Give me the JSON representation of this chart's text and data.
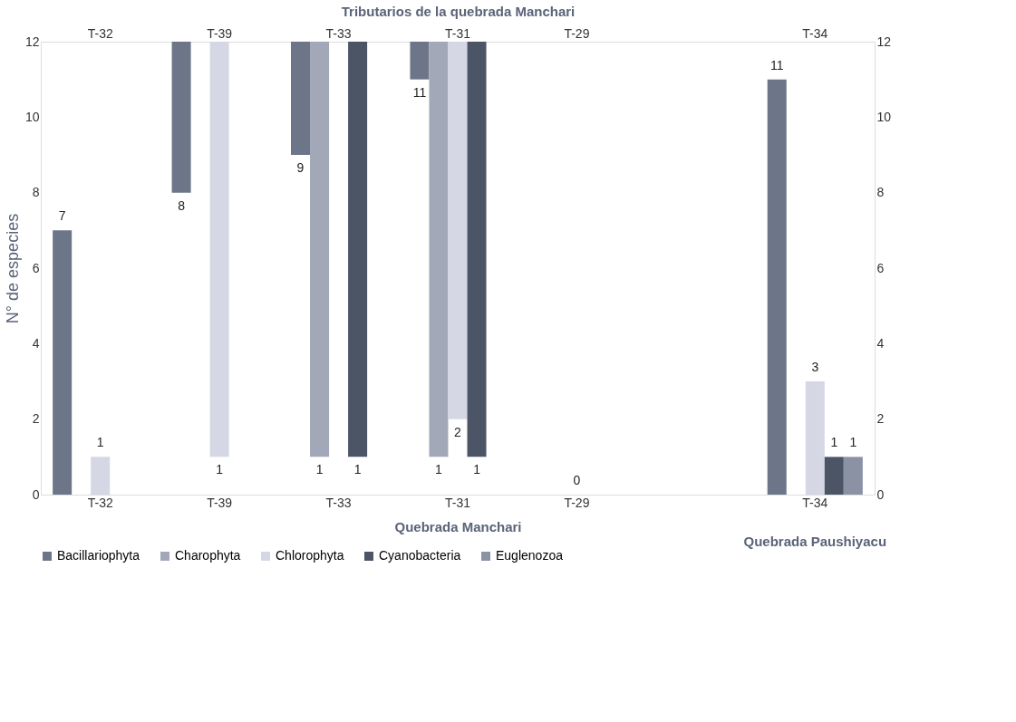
{
  "chart_data": {
    "type": "bar",
    "ylabel": "N° de especies",
    "xlabel": "Quebrada Manchari",
    "x2label": "Tributarios de la quebrada Manchari",
    "categories": [
      "T-32",
      "T-39",
      "T-33",
      "T-31",
      "T-29",
      null,
      "T-34"
    ],
    "ylim": [
      0,
      12
    ],
    "yticks": [
      0,
      2,
      4,
      6,
      8,
      10,
      12
    ],
    "y2lim": [
      0,
      12
    ],
    "y2ticks": [
      0,
      2,
      4,
      6,
      8,
      10,
      12
    ],
    "series": [
      {
        "name": "Bacillariophyta",
        "color": "#6d7689",
        "values": [
          7,
          -4,
          -3,
          -1,
          null,
          null,
          11
        ],
        "base": [
          null,
          12,
          12,
          12,
          null,
          null,
          null
        ],
        "value_labels": [
          "7",
          "8",
          "9",
          "11",
          null,
          null,
          "11"
        ]
      },
      {
        "name": "Charophyta",
        "color": "#a3a8b8",
        "values": [
          null,
          null,
          -11,
          -11,
          null,
          null,
          null
        ],
        "base": [
          null,
          null,
          12,
          12,
          null,
          null,
          null
        ],
        "value_labels": [
          null,
          null,
          "1",
          "1",
          null,
          null,
          null
        ]
      },
      {
        "name": "Chlorophyta",
        "color": "#d5d8e4",
        "values": [
          1,
          -11,
          null,
          -10,
          0,
          null,
          3
        ],
        "base": [
          null,
          12,
          null,
          12,
          null,
          null,
          null
        ],
        "value_labels": [
          "1",
          "1",
          null,
          "2",
          "0",
          null,
          "3"
        ]
      },
      {
        "name": "Cyanobacteria",
        "color": "#4c5566",
        "values": [
          null,
          null,
          -11,
          -11,
          null,
          null,
          1
        ],
        "base": [
          null,
          null,
          12,
          12,
          null,
          null,
          null
        ],
        "value_labels": [
          null,
          null,
          "1",
          "1",
          null,
          null,
          "1"
        ]
      },
      {
        "name": "Euglenozoa",
        "color": "#8b92a4",
        "values": [
          null,
          null,
          null,
          null,
          null,
          null,
          1
        ],
        "value_labels": [
          null,
          null,
          null,
          null,
          null,
          null,
          "1"
        ]
      }
    ],
    "annotations": [
      "Quebrada Paushiyacu"
    ],
    "grid": false,
    "legend": "bottom"
  }
}
